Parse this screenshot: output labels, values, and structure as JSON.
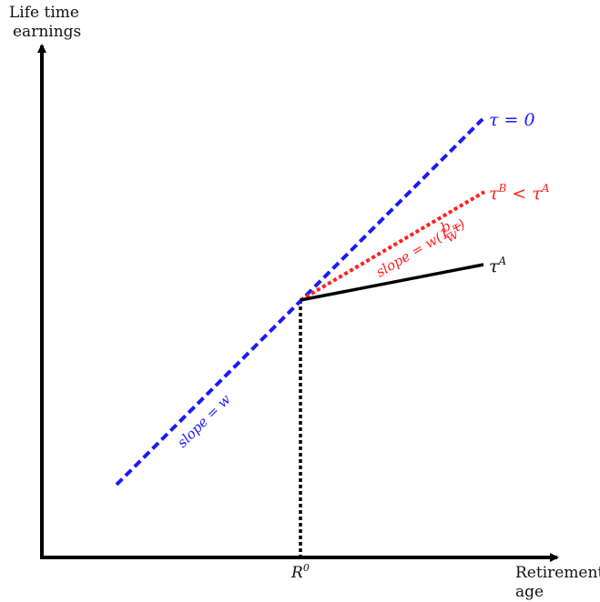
{
  "y_axis": {
    "label_line1": "Life time",
    "label_line2": "earnings"
  },
  "x_axis": {
    "label_line1": "Retirement",
    "label_line2": "age",
    "tick_label": "R",
    "tick_label_sup": "0"
  },
  "lines": {
    "tau_zero": {
      "label": "τ = 0",
      "color": "#1a1aff",
      "slope_label": "slope = w"
    },
    "tau_b": {
      "label_main": "τ",
      "label_sup": "B",
      "label_mid": " < τ",
      "label_sup2": "A",
      "color": "#ff2020",
      "slope_label_prefix": "slope = w(1 − ",
      "slope_label_frac_num": "b",
      "slope_label_frac_den": "w",
      "slope_label_suffix": "τ)"
    },
    "tau_a": {
      "label_main": "τ",
      "label_sup": "A",
      "color": "#111111"
    }
  }
}
